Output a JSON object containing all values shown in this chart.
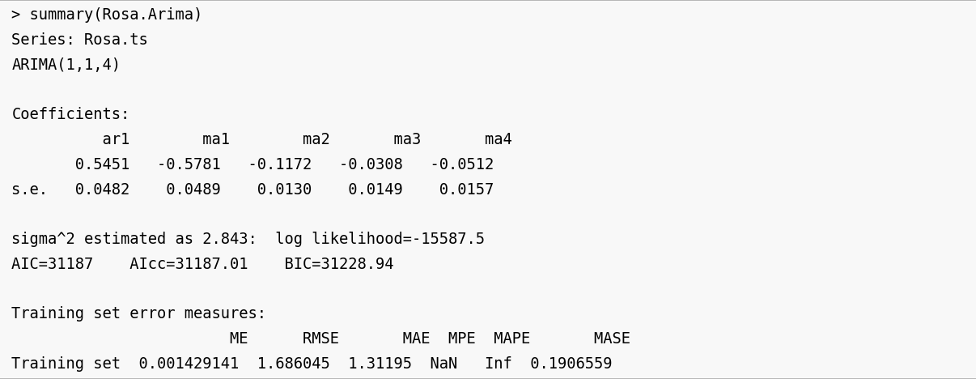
{
  "background_color": "#f8f8f8",
  "border_color": "#aaaaaa",
  "text_color": "#000000",
  "font_family": "monospace",
  "font_size": 13.5,
  "lines": [
    "> summary(Rosa.Arima)",
    "Series: Rosa.ts",
    "ARIMA(1,1,4)",
    "",
    "Coefficients:",
    "          ar1        ma1        ma2       ma3       ma4",
    "       0.5451   -0.5781   -0.1172   -0.0308   -0.0512",
    "s.e.   0.0482    0.0489    0.0130    0.0149    0.0157",
    "",
    "sigma^2 estimated as 2.843:  log likelihood=-15587.5",
    "AIC=31187    AIcc=31187.01    BIC=31228.94",
    "",
    "Training set error measures:",
    "                        ME      RMSE       MAE  MPE  MAPE       MASE",
    "Training set  0.001429141  1.686045  1.31195  NaN   Inf  0.1906559"
  ]
}
